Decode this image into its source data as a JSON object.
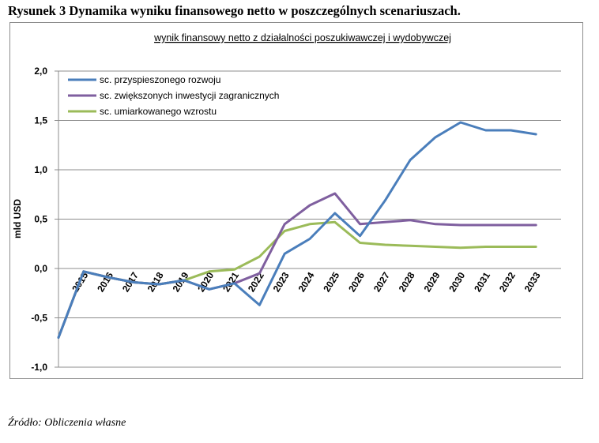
{
  "figure": {
    "caption": "Rysunek 3 Dynamika wyniku finansowego netto w poszczególnych scenariuszach.",
    "source": "Źródło: Obliczenia własne"
  },
  "chart_data": {
    "type": "line",
    "title": "wynik finansowy netto z działalności poszukiwawczej i wydobywczej",
    "xlabel": "",
    "ylabel": "mld USD",
    "ylim": [
      -1.0,
      2.0
    ],
    "yticks": [
      "2,0",
      "1,5",
      "1,0",
      "0,5",
      "0,0",
      "-0,5",
      "-1,0"
    ],
    "ytick_values": [
      2.0,
      1.5,
      1.0,
      0.5,
      0.0,
      -0.5,
      -1.0
    ],
    "x_start": 2014,
    "categories": [
      "2015",
      "2016",
      "2017",
      "2018",
      "2019",
      "2020",
      "2021",
      "2022",
      "2023",
      "2024",
      "2025",
      "2026",
      "2027",
      "2028",
      "2029",
      "2030",
      "2031",
      "2032",
      "2033"
    ],
    "series": [
      {
        "name": "sc. przyspieszonego rozwoju",
        "color": "#4a7ebb",
        "x": [
          2014,
          2015,
          2016,
          2017,
          2018,
          2019,
          2020,
          2021,
          2022,
          2023,
          2024,
          2025,
          2026,
          2027,
          2028,
          2029,
          2030,
          2031,
          2032,
          2033
        ],
        "values": [
          -0.7,
          -0.03,
          -0.09,
          -0.14,
          -0.16,
          -0.12,
          -0.21,
          -0.15,
          -0.37,
          0.15,
          0.3,
          0.56,
          0.33,
          0.69,
          1.1,
          1.33,
          1.48,
          1.4,
          1.4,
          1.36
        ]
      },
      {
        "name": "sc. zwiększonych inwestycji zagranicznych",
        "color": "#7f5f9f",
        "x": [
          2014,
          2015,
          2016,
          2017,
          2018,
          2019,
          2020,
          2021,
          2022,
          2023,
          2024,
          2025,
          2026,
          2027,
          2028,
          2029,
          2030,
          2031,
          2032,
          2033
        ],
        "values": [
          -0.7,
          -0.03,
          -0.09,
          -0.14,
          -0.16,
          -0.12,
          -0.21,
          -0.15,
          -0.05,
          0.45,
          0.64,
          0.76,
          0.45,
          0.47,
          0.49,
          0.45,
          0.44,
          0.44,
          0.44,
          0.44
        ]
      },
      {
        "name": "sc. umiarkowanego wzrostu",
        "color": "#9bbb59",
        "x": [
          2014,
          2015,
          2016,
          2017,
          2018,
          2019,
          2020,
          2021,
          2022,
          2023,
          2024,
          2025,
          2026,
          2027,
          2028,
          2029,
          2030,
          2031,
          2032,
          2033
        ],
        "values": [
          -0.7,
          -0.03,
          -0.09,
          -0.14,
          -0.16,
          -0.12,
          -0.03,
          -0.01,
          0.12,
          0.38,
          0.45,
          0.47,
          0.26,
          0.24,
          0.23,
          0.22,
          0.21,
          0.22,
          0.22,
          0.22
        ]
      }
    ],
    "legend": "top-left",
    "grid": true
  }
}
